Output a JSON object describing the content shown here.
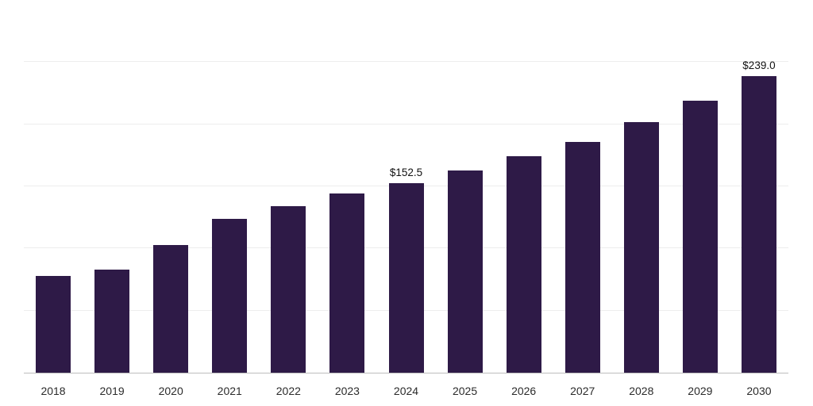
{
  "chart_data": {
    "type": "bar",
    "categories": [
      "2018",
      "2019",
      "2020",
      "2021",
      "2022",
      "2023",
      "2024",
      "2025",
      "2026",
      "2027",
      "2028",
      "2029",
      "2030"
    ],
    "values": [
      78.0,
      83.0,
      103.0,
      124.0,
      134.0,
      144.0,
      152.5,
      163.0,
      174.0,
      186.0,
      202.0,
      219.0,
      239.0
    ],
    "data_labels": [
      {
        "category": "2024",
        "text": "$152.5"
      },
      {
        "category": "2030",
        "text": "$239.0"
      }
    ],
    "title": "",
    "xlabel": "",
    "ylabel": "",
    "ylim": [
      0,
      300
    ],
    "grid": true,
    "gridline_interval": 50,
    "legend": "none",
    "colors": {
      "bar": "#2e1a47",
      "background": "#ffffff",
      "gridline": "#ededed",
      "axis_line": "#bdbdbd",
      "tick_label": "#2b2b2b",
      "data_label": "#111111"
    }
  }
}
